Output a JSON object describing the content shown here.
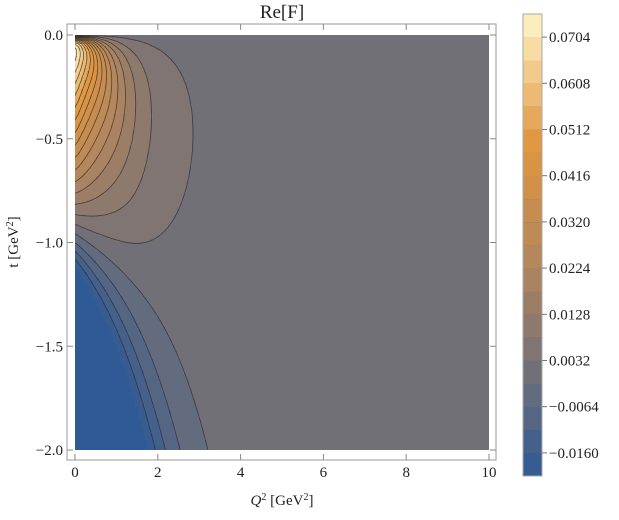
{
  "chart_data": {
    "type": "contour",
    "title": "Re[F]",
    "xlabel": "Q^2 [GeV^2]",
    "ylabel": "t [GeV^2]",
    "xlim": [
      0,
      10
    ],
    "ylim": [
      -2.0,
      0.0
    ],
    "xticks": [
      0,
      2,
      4,
      6,
      8,
      10
    ],
    "yticks": [
      0.0,
      -0.5,
      -1.0,
      -1.5,
      -2.0
    ],
    "xtick_labels": [
      "0",
      "2",
      "4",
      "6",
      "8",
      "10"
    ],
    "ytick_labels": [
      "0.0",
      "−0.5",
      "−1.0",
      "−1.5",
      "−2.0"
    ],
    "colorbar": {
      "range": [
        -0.0208,
        0.0752
      ],
      "step": 0.0048,
      "tick_values": [
        0.0704,
        0.0608,
        0.0512,
        0.0416,
        0.032,
        0.0224,
        0.0128,
        0.0032,
        -0.0064,
        -0.016
      ],
      "tick_labels": [
        "0.0704",
        "0.0608",
        "0.0512",
        "0.0416",
        "0.0320",
        "0.0224",
        "0.0128",
        "0.0032",
        "−0.0064",
        "−0.0160"
      ]
    },
    "colors": {
      "low": "#2f5a95",
      "zero": "#6f6f78",
      "mid": "#b08560",
      "orange": "#e0953f",
      "high": "#fff6c8"
    },
    "grid": false
  }
}
